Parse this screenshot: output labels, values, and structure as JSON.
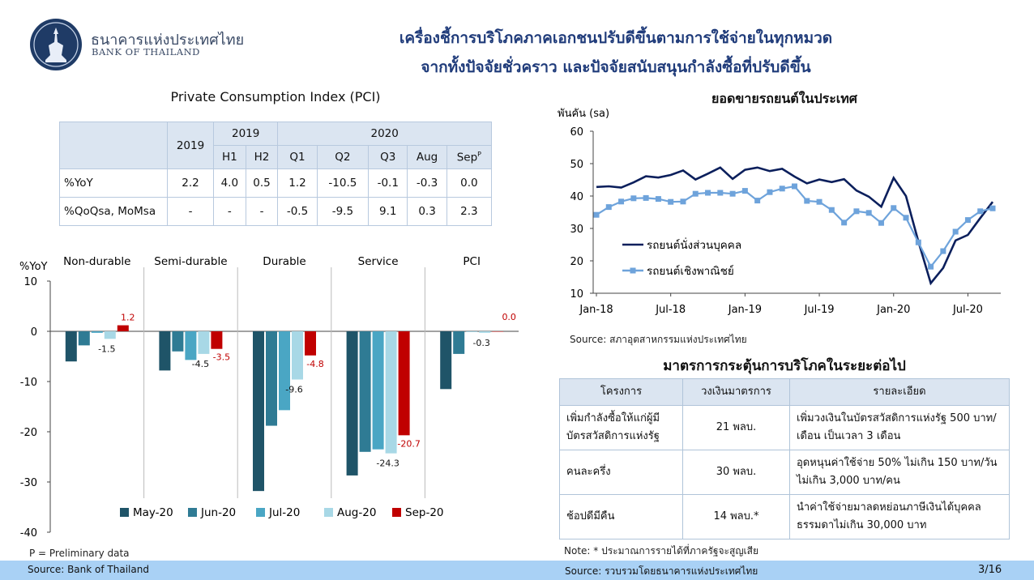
{
  "header": {
    "org_th": "ธนาคารแห่งประเทศไทย",
    "org_en": "BANK OF THAILAND",
    "title_line1": "เครื่องชี้การบริโภคภาคเอกชนปรับดีขึ้นตามการใช้จ่ายในทุกหมวด",
    "title_line2": "จากทั้งปัจจัยชั่วคราว และปัจจัยสนับสนุนกำลังซื้อที่ปรับดีขึ้น",
    "logo_icon": "bot-emblem-icon"
  },
  "pci_table": {
    "title": "Private Consumption Index (PCI)",
    "header_year_2019": "2019",
    "header_2019": "2019",
    "header_2020": "2020",
    "sub_h1": "H1",
    "sub_h2": "H2",
    "sub_q1": "Q1",
    "sub_q2": "Q2",
    "sub_q3": "Q3",
    "sub_aug": "Aug",
    "sub_sep": "Sep",
    "sep_mark": "P",
    "rows": [
      {
        "label": "%YoY",
        "cells": [
          "2.2",
          "4.0",
          "0.5",
          "1.2",
          "-10.5",
          "-0.1",
          "-0.3",
          "0.0"
        ]
      },
      {
        "label": "%QoQsa, MoMsa",
        "cells": [
          "-",
          "-",
          "-",
          "-0.5",
          "-9.5",
          "9.1",
          "0.3",
          "2.3"
        ]
      }
    ]
  },
  "preliminary_note": "P = Preliminary data",
  "chart_data": [
    {
      "type": "bar",
      "ylabel": "%YoY",
      "ylim": [
        -40,
        10
      ],
      "yticks": [
        10,
        0,
        -10,
        -20,
        -30,
        -40
      ],
      "categories": [
        "Non-durable",
        "Semi-durable",
        "Durable",
        "Service",
        "PCI"
      ],
      "series": [
        {
          "name": "May-20",
          "color": "#1f5468",
          "values": [
            -6.0,
            -7.8,
            -31.8,
            -28.7,
            -11.5
          ]
        },
        {
          "name": "Jun-20",
          "color": "#2f7b94",
          "values": [
            -2.8,
            -4.0,
            -18.8,
            -24.0,
            -4.5
          ]
        },
        {
          "name": "Jul-20",
          "color": "#4aa6c4",
          "values": [
            -0.3,
            -5.7,
            -15.7,
            -23.5,
            0.0
          ]
        },
        {
          "name": "Aug-20",
          "color": "#a8d8e6",
          "values": [
            -1.5,
            -4.5,
            -9.6,
            -24.3,
            -0.3
          ]
        },
        {
          "name": "Sep-20",
          "color": "#c00000",
          "values": [
            1.2,
            -3.5,
            -4.8,
            -20.7,
            0.0
          ]
        }
      ],
      "data_labels": [
        {
          "category": "Non-durable",
          "series": "Aug-20",
          "text": "-1.5"
        },
        {
          "category": "Non-durable",
          "series": "Sep-20",
          "text": "1.2"
        },
        {
          "category": "Semi-durable",
          "series": "Aug-20",
          "text": "-4.5"
        },
        {
          "category": "Semi-durable",
          "series": "Sep-20",
          "text": "-3.5"
        },
        {
          "category": "Durable",
          "series": "Aug-20",
          "text": "-9.6"
        },
        {
          "category": "Durable",
          "series": "Sep-20",
          "text": "-4.8"
        },
        {
          "category": "Service",
          "series": "Aug-20",
          "text": "-24.3"
        },
        {
          "category": "Service",
          "series": "Sep-20",
          "text": "-20.7"
        },
        {
          "category": "PCI",
          "series": "Aug-20",
          "text": "-0.3"
        },
        {
          "category": "PCI",
          "series": "Sep-20",
          "text": "0.0"
        }
      ],
      "legend": "bottom"
    },
    {
      "type": "line",
      "title": "ยอดขายรถยนต์ในประเทศ",
      "ylabel": "พันคัน (sa)",
      "ylim": [
        10,
        60
      ],
      "yticks": [
        60,
        50,
        40,
        30,
        20,
        10
      ],
      "x_labels": [
        "Jan-18",
        "Jul-18",
        "Jan-19",
        "Jul-19",
        "Jan-20",
        "Jul-20"
      ],
      "x_label_months": [
        0,
        6,
        12,
        18,
        24,
        30
      ],
      "x": [
        "Jan-18",
        "Feb-18",
        "Mar-18",
        "Apr-18",
        "May-18",
        "Jun-18",
        "Jul-18",
        "Aug-18",
        "Sep-18",
        "Oct-18",
        "Nov-18",
        "Dec-18",
        "Jan-19",
        "Feb-19",
        "Mar-19",
        "Apr-19",
        "May-19",
        "Jun-19",
        "Jul-19",
        "Aug-19",
        "Sep-19",
        "Oct-19",
        "Nov-19",
        "Dec-19",
        "Jan-20",
        "Feb-20",
        "Mar-20",
        "Apr-20",
        "May-20",
        "Jun-20",
        "Jul-20",
        "Aug-20",
        "Sep-20"
      ],
      "series": [
        {
          "name": "รถยนต์นั่งส่วนบุคคล",
          "color": "#0b1f5c",
          "marker": "none",
          "values": [
            42.8,
            43.0,
            42.6,
            44.2,
            46.1,
            45.7,
            46.5,
            47.9,
            45.1,
            46.9,
            48.8,
            45.3,
            48.1,
            48.8,
            47.7,
            48.4,
            46.0,
            43.9,
            45.1,
            44.3,
            45.2,
            41.7,
            39.8,
            36.7,
            45.6,
            40.0,
            26.0,
            13.1,
            17.8,
            26.3,
            28.0,
            33.2,
            38.2
          ]
        },
        {
          "name": "รถยนต์เชิงพาณิชย์",
          "color": "#6ea3db",
          "marker": "square",
          "values": [
            34.2,
            36.6,
            38.3,
            39.3,
            39.4,
            39.1,
            38.2,
            38.3,
            40.7,
            41.0,
            41.0,
            40.7,
            41.6,
            38.6,
            41.2,
            42.3,
            43.0,
            38.5,
            38.2,
            35.7,
            31.8,
            35.3,
            34.8,
            31.7,
            36.3,
            33.3,
            25.7,
            18.2,
            23.0,
            29.0,
            32.6,
            35.3,
            36.2
          ]
        }
      ],
      "legend": "bottom-left",
      "source": "Source: สภาอุตสาหกรรมแห่งประเทศไทย"
    }
  ],
  "measures": {
    "title": "มาตรการกระตุ้นการบริโภคในระยะต่อไป",
    "headers": [
      "โครงการ",
      "วงเงินมาตรการ",
      "รายละเอียด"
    ],
    "rows": [
      {
        "project": "เพิ่มกำลังซื้อให้แก่ผู้มีบัตรสวัสดิการแห่งรัฐ",
        "amount": "21 พลบ.",
        "detail": "เพิ่มวงเงินในบัตรสวัสดิการแห่งรัฐ 500 บาท/เดือน เป็นเวลา 3 เดือน"
      },
      {
        "project": "คนละครึ่ง",
        "amount": "30 พลบ.",
        "detail": "อุดหนุนค่าใช้จ่าย 50% ไม่เกิน 150 บาท/วัน ไม่เกิน 3,000 บาท/คน"
      },
      {
        "project": "ช้อปดีมีคืน",
        "amount": "14 พลบ.*",
        "detail": "นำค่าใช้จ่ายมาลดหย่อนภาษีเงินได้บุคคลธรรมดาไม่เกิน 30,000 บาท"
      }
    ],
    "note": "Note: * ประมาณการรายได้ที่ภาครัฐจะสูญเสีย"
  },
  "footer": {
    "left_source": "Source: Bank of Thailand",
    "right_source": "Source: รวบรวมโดยธนาคารแห่งประเทศไทย",
    "page": "3/16",
    "color": "#a9d1f5"
  }
}
